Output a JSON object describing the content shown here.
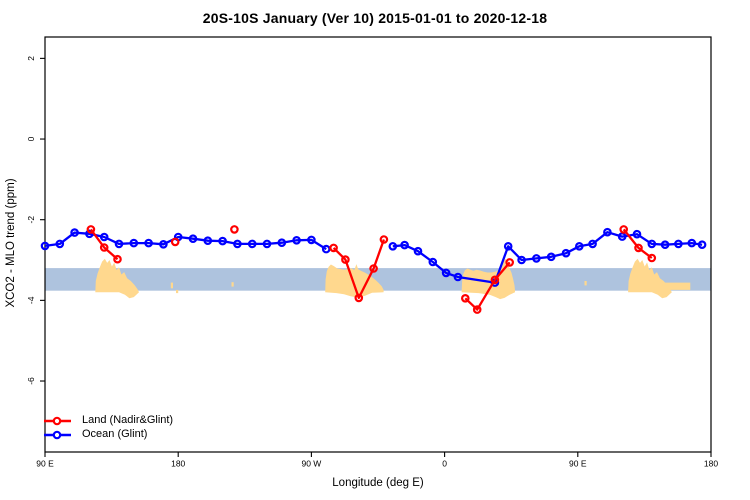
{
  "title": "20S-10S January (Ver 10)   2015-01-01 to 2020-12-18",
  "legend": {
    "items": [
      {
        "label": "Land (Nadir&Glint)",
        "color": "#ff0000"
      },
      {
        "label": "Ocean (Glint)",
        "color": "#0000ff"
      }
    ]
  },
  "chart_data": {
    "type": "line",
    "title": "20S-10S January (Ver 10)   2015-01-01 to 2020-12-18",
    "xlabel": "Longitude (deg E)",
    "ylabel": "XCO2 - MLO trend (ppm)",
    "xlim": [
      90,
      540
    ],
    "ylim": [
      -7.76,
      2.53
    ],
    "x_wraps_longitude": true,
    "grid": false,
    "legend_position": "bottom-left",
    "xticks": [
      {
        "x": 90,
        "label": "90 E"
      },
      {
        "x": 180,
        "label": "180"
      },
      {
        "x": 270,
        "label": "90 W"
      },
      {
        "x": 360,
        "label": "0"
      },
      {
        "x": 450,
        "label": "90 E"
      },
      {
        "x": 540,
        "label": "180"
      }
    ],
    "yticks": [
      {
        "v": 2,
        "label": "2"
      },
      {
        "v": 0,
        "label": "0"
      },
      {
        "v": -2,
        "label": "-2"
      },
      {
        "v": -4,
        "label": "-4"
      },
      {
        "v": -6,
        "label": "-6"
      }
    ],
    "band": {
      "from": -3.76,
      "to": -3.2,
      "color": "#aec3de"
    },
    "patches": {
      "color": "#ffd88e",
      "polygons": [
        [
          [
            124,
            -3.8
          ],
          [
            124.3,
            -3.52
          ],
          [
            125.5,
            -3.34
          ],
          [
            127,
            -3.18
          ],
          [
            128.6,
            -3.04
          ],
          [
            130.4,
            -2.97
          ],
          [
            132,
            -3.07
          ],
          [
            133.6,
            -3.0
          ],
          [
            135.2,
            -3.16
          ],
          [
            136.8,
            -3.06
          ],
          [
            138.4,
            -3.25
          ],
          [
            140,
            -3.18
          ],
          [
            141.6,
            -3.36
          ],
          [
            143.5,
            -3.3
          ],
          [
            145.5,
            -3.45
          ],
          [
            148,
            -3.52
          ],
          [
            150.5,
            -3.62
          ],
          [
            152.5,
            -3.72
          ],
          [
            153.5,
            -3.8
          ],
          [
            150,
            -3.92
          ],
          [
            147,
            -3.95
          ],
          [
            144,
            -3.86
          ],
          [
            140,
            -3.8
          ]
        ],
        [
          [
            279.3,
            -3.8
          ],
          [
            279.6,
            -3.48
          ],
          [
            280.4,
            -3.28
          ],
          [
            281.6,
            -3.17
          ],
          [
            283.2,
            -3.11
          ],
          [
            285.2,
            -3.15
          ],
          [
            287.5,
            -3.21
          ],
          [
            290,
            -3.23
          ],
          [
            292.5,
            -3.24
          ],
          [
            295,
            -3.22
          ],
          [
            297,
            -3.2
          ],
          [
            299,
            -3.25
          ],
          [
            300.4,
            -3.1
          ],
          [
            301.6,
            -3.23
          ],
          [
            303.5,
            -3.27
          ],
          [
            305.5,
            -3.3
          ],
          [
            307.5,
            -3.34
          ],
          [
            309.5,
            -3.39
          ],
          [
            311.5,
            -3.44
          ],
          [
            313.5,
            -3.5
          ],
          [
            315.5,
            -3.57
          ],
          [
            317.5,
            -3.65
          ],
          [
            318.8,
            -3.74
          ],
          [
            318.8,
            -3.8
          ],
          [
            311,
            -3.81
          ],
          [
            306,
            -3.89
          ],
          [
            301,
            -3.93
          ],
          [
            296.5,
            -3.9
          ],
          [
            292,
            -3.85
          ],
          [
            287,
            -3.82
          ]
        ],
        [
          [
            371.5,
            -3.8
          ],
          [
            371.8,
            -3.54
          ],
          [
            372.6,
            -3.35
          ],
          [
            373.8,
            -3.25
          ],
          [
            375.5,
            -3.21
          ],
          [
            377.5,
            -3.24
          ],
          [
            379.5,
            -3.27
          ],
          [
            381.5,
            -3.24
          ],
          [
            384,
            -3.26
          ],
          [
            386.5,
            -3.29
          ],
          [
            389,
            -3.31
          ],
          [
            391.5,
            -3.31
          ],
          [
            394,
            -3.29
          ],
          [
            396.5,
            -3.26
          ],
          [
            398.5,
            -3.18
          ],
          [
            400,
            -3.02
          ],
          [
            401.2,
            -2.97
          ],
          [
            402.4,
            -3.08
          ],
          [
            403.8,
            -3.2
          ],
          [
            405.2,
            -3.32
          ],
          [
            406.3,
            -3.47
          ],
          [
            407.2,
            -3.63
          ],
          [
            407.6,
            -3.76
          ],
          [
            407.6,
            -3.8
          ],
          [
            404,
            -3.86
          ],
          [
            400.5,
            -3.94
          ],
          [
            397.5,
            -3.97
          ],
          [
            394.5,
            -3.92
          ],
          [
            390.5,
            -3.86
          ],
          [
            383,
            -3.82
          ]
        ],
        [
          [
            484,
            -3.8
          ],
          [
            484.3,
            -3.52
          ],
          [
            485.5,
            -3.34
          ],
          [
            487,
            -3.18
          ],
          [
            488.6,
            -3.04
          ],
          [
            490.4,
            -2.97
          ],
          [
            492,
            -3.07
          ],
          [
            493.6,
            -3.0
          ],
          [
            495.2,
            -3.16
          ],
          [
            496.8,
            -3.06
          ],
          [
            498.4,
            -3.25
          ],
          [
            500,
            -3.18
          ],
          [
            501.6,
            -3.36
          ],
          [
            503.5,
            -3.3
          ],
          [
            505.5,
            -3.45
          ],
          [
            508,
            -3.52
          ],
          [
            510.5,
            -3.62
          ],
          [
            512.5,
            -3.72
          ],
          [
            513.5,
            -3.8
          ],
          [
            510,
            -3.92
          ],
          [
            507,
            -3.95
          ],
          [
            504,
            -3.86
          ],
          [
            500,
            -3.8
          ]
        ],
        [
          [
            508,
            -3.56
          ],
          [
            526,
            -3.56
          ],
          [
            526,
            -3.74
          ],
          [
            508,
            -3.74
          ]
        ],
        [
          [
            175,
            -3.56
          ],
          [
            176.5,
            -3.56
          ],
          [
            176.5,
            -3.7
          ],
          [
            175,
            -3.7
          ]
        ],
        [
          [
            178.5,
            -3.74
          ],
          [
            180,
            -3.74
          ],
          [
            180,
            -3.82
          ],
          [
            178.5,
            -3.82
          ]
        ],
        [
          [
            216,
            -3.55
          ],
          [
            217.5,
            -3.55
          ],
          [
            217.5,
            -3.66
          ],
          [
            216,
            -3.66
          ]
        ],
        [
          [
            454.5,
            -3.52
          ],
          [
            456,
            -3.52
          ],
          [
            456,
            -3.63
          ],
          [
            454.5,
            -3.63
          ]
        ]
      ]
    },
    "series": [
      {
        "name": "Ocean (Glint)",
        "color": "#0000ff",
        "marker": "open-circle",
        "segments": [
          [
            [
              90,
              -2.65
            ],
            [
              100,
              -2.6
            ],
            [
              110,
              -2.32
            ],
            [
              120,
              -2.35
            ],
            [
              130,
              -2.43
            ],
            [
              140,
              -2.6
            ],
            [
              150,
              -2.58
            ],
            [
              160,
              -2.58
            ],
            [
              170,
              -2.61
            ],
            [
              180,
              -2.43
            ],
            [
              190,
              -2.47
            ],
            [
              200,
              -2.52
            ],
            [
              210,
              -2.53
            ],
            [
              220,
              -2.6
            ],
            [
              230,
              -2.6
            ],
            [
              240,
              -2.6
            ],
            [
              250,
              -2.57
            ],
            [
              260,
              -2.51
            ],
            [
              270,
              -2.5
            ],
            [
              280,
              -2.73
            ]
          ],
          [
            [
              325,
              -2.66
            ],
            [
              333,
              -2.63
            ],
            [
              342,
              -2.78
            ],
            [
              352,
              -3.05
            ],
            [
              361,
              -3.32
            ],
            [
              369,
              -3.42
            ],
            [
              394,
              -3.56
            ],
            [
              403,
              -2.66
            ],
            [
              412,
              -3.0
            ],
            [
              422,
              -2.96
            ],
            [
              432,
              -2.92
            ],
            [
              442,
              -2.83
            ],
            [
              451,
              -2.66
            ],
            [
              460,
              -2.6
            ],
            [
              470,
              -2.31
            ],
            [
              480,
              -2.42
            ],
            [
              490,
              -2.36
            ],
            [
              500,
              -2.6
            ],
            [
              509,
              -2.62
            ],
            [
              518,
              -2.6
            ],
            [
              527,
              -2.58
            ],
            [
              534,
              -2.62
            ]
          ]
        ]
      },
      {
        "name": "Land (Nadir&Glint)",
        "color": "#ff0000",
        "marker": "open-circle",
        "segments": [
          [
            [
              121,
              -2.24
            ],
            [
              130,
              -2.69
            ],
            [
              139,
              -2.98
            ]
          ],
          [
            [
              178,
              -2.55
            ]
          ],
          [
            [
              218,
              -2.24
            ]
          ],
          [
            [
              285,
              -2.7
            ],
            [
              293,
              -2.99
            ],
            [
              302,
              -3.94
            ],
            [
              312,
              -3.21
            ],
            [
              319,
              -2.49
            ]
          ],
          [
            [
              374,
              -3.95
            ],
            [
              382,
              -4.23
            ],
            [
              394,
              -3.49
            ],
            [
              404,
              -3.06
            ]
          ],
          [
            [
              481,
              -2.24
            ],
            [
              491,
              -2.7
            ],
            [
              500,
              -2.95
            ]
          ]
        ]
      }
    ]
  }
}
